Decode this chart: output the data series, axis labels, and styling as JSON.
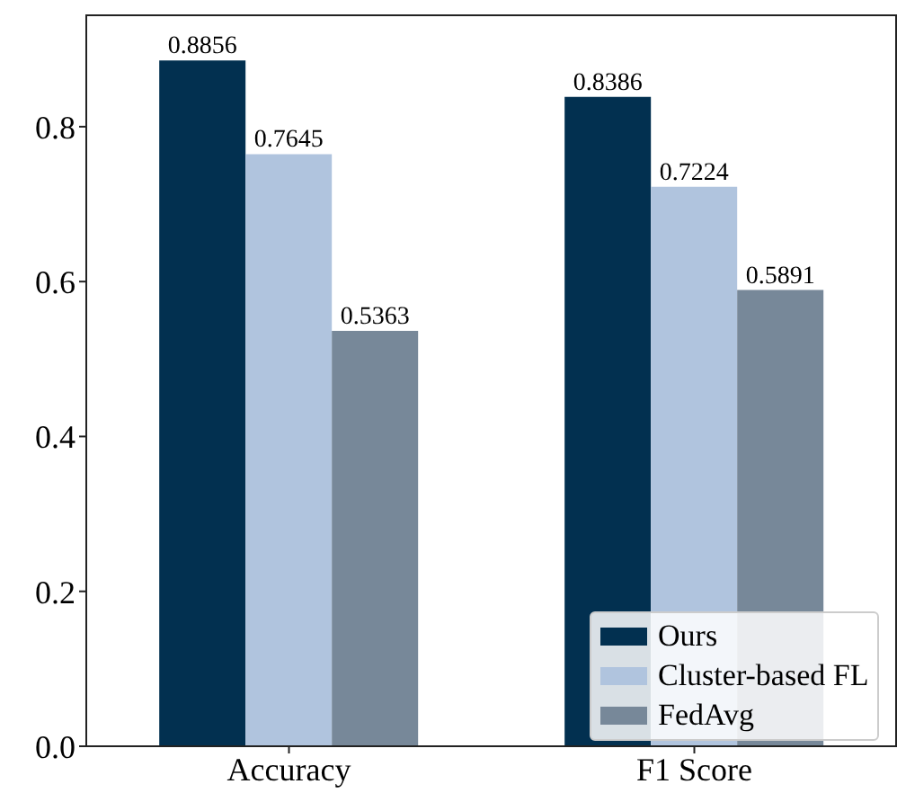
{
  "chart_data": {
    "type": "bar",
    "categories": [
      "Accuracy",
      "F1 Score"
    ],
    "series": [
      {
        "name": "Ours",
        "color": "#023050",
        "values": [
          0.8856,
          0.8386
        ]
      },
      {
        "name": "Cluster-based FL",
        "color": "#b0c4de",
        "values": [
          0.7645,
          0.7224
        ]
      },
      {
        "name": "FedAvg",
        "color": "#778899",
        "values": [
          0.5363,
          0.5891
        ]
      }
    ],
    "ylim": [
      0,
      0.945
    ],
    "yticks": [
      {
        "value": 0,
        "label": "0.0"
      },
      0.2,
      0.4,
      0.6,
      0.8
    ],
    "data_labels": true,
    "legend": "bottom right",
    "grid": false
  }
}
